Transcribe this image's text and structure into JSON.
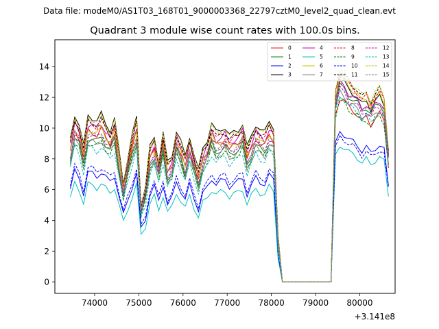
{
  "figure": {
    "suptitle": "Data file: modeM0/AS1T03_168T01_9000003368_22797cztM0_level2_quad_clean.evt",
    "title": "Quadrant 3 module wise count rates with 100.0s bins.",
    "offset_text": "+3.141e8"
  },
  "chart_data": {
    "type": "line",
    "x_offset": 314100000,
    "xlim": [
      73100,
      80800
    ],
    "ylim": [
      -0.75,
      15.75
    ],
    "xticks": [
      74000,
      75000,
      76000,
      77000,
      78000,
      79000,
      80000
    ],
    "xtick_labels": [
      "74000",
      "75000",
      "76000",
      "77000",
      "78000",
      "79000",
      "80000"
    ],
    "yticks": [
      0,
      2,
      4,
      6,
      8,
      10,
      12,
      14
    ],
    "ytick_labels": [
      "0",
      "2",
      "4",
      "6",
      "8",
      "10",
      "12",
      "14"
    ],
    "grid": false,
    "legend": {
      "placement": "top-right",
      "columns": 4
    },
    "series": [
      {
        "name": "0",
        "color": "#ff0000",
        "dash": "solid",
        "base": 9.0,
        "post": 10.9
      },
      {
        "name": "1",
        "color": "#008000",
        "dash": "solid",
        "base": 8.6,
        "post": 11.6
      },
      {
        "name": "2",
        "color": "#0000ff",
        "dash": "solid",
        "base": 6.5,
        "post": 8.9
      },
      {
        "name": "3",
        "color": "#000000",
        "dash": "solid",
        "base": 9.9,
        "post": 12.0
      },
      {
        "name": "4",
        "color": "#bf00bf",
        "dash": "solid",
        "base": 9.4,
        "post": 11.8
      },
      {
        "name": "5",
        "color": "#00bfbf",
        "dash": "solid",
        "base": 5.8,
        "post": 8.1
      },
      {
        "name": "6",
        "color": "#bfbf00",
        "dash": "solid",
        "base": 9.1,
        "post": 12.2
      },
      {
        "name": "7",
        "color": "#808080",
        "dash": "solid",
        "base": 8.4,
        "post": 11.2
      },
      {
        "name": "8",
        "color": "#ff0000",
        "dash": "dashed",
        "base": 9.5,
        "post": 12.3
      },
      {
        "name": "9",
        "color": "#008000",
        "dash": "dashed",
        "base": 8.3,
        "post": 10.8
      },
      {
        "name": "10",
        "color": "#0000ff",
        "dash": "dashed",
        "base": 6.8,
        "post": 8.6
      },
      {
        "name": "11",
        "color": "#000000",
        "dash": "dashed",
        "base": 9.6,
        "post": 12.5
      },
      {
        "name": "12",
        "color": "#bf00bf",
        "dash": "dashed",
        "base": 8.8,
        "post": 11.4
      },
      {
        "name": "13",
        "color": "#00bfbf",
        "dash": "dashed",
        "base": 8.0,
        "post": 11.0
      },
      {
        "name": "14",
        "color": "#bfbf00",
        "dash": "dashed",
        "base": 9.8,
        "post": 12.6
      },
      {
        "name": "15",
        "color": "#808080",
        "dash": "dashed",
        "base": 8.9,
        "post": 11.7
      }
    ],
    "x": [
      73450,
      73550,
      73650,
      73750,
      73850,
      73950,
      74050,
      74150,
      74250,
      74350,
      74450,
      74550,
      74650,
      74750,
      74850,
      74950,
      75050,
      75150,
      75250,
      75350,
      75450,
      75550,
      75650,
      75750,
      75850,
      75950,
      76050,
      76150,
      76250,
      76350,
      76450,
      76550,
      76650,
      76750,
      76850,
      76950,
      77050,
      77150,
      77250,
      77350,
      77450,
      77550,
      77650,
      77750,
      77850,
      77950,
      78050,
      78150,
      78250,
      78350,
      78450,
      78550,
      78650,
      78750,
      78850,
      78950,
      79050,
      79150,
      79250,
      79350,
      79450,
      79550,
      79650,
      79750,
      79850,
      79950,
      80050,
      80150,
      80250,
      80350,
      80450,
      80550,
      80650
    ],
    "shape": [
      0.93,
      1.1,
      1.04,
      0.89,
      1.09,
      1.08,
      1.06,
      1.1,
      1.04,
      1.0,
      1.07,
      0.86,
      0.66,
      0.82,
      0.96,
      1.08,
      0.52,
      0.63,
      0.88,
      0.95,
      0.8,
      0.98,
      0.78,
      0.83,
      1.0,
      0.92,
      0.82,
      0.96,
      0.84,
      0.73,
      0.88,
      0.94,
      1.04,
      0.98,
      1.0,
      1.02,
      0.96,
      0.98,
      1.0,
      1.04,
      0.88,
      0.96,
      1.04,
      1.0,
      0.98,
      1.06,
      1.02,
      0.3,
      0,
      0,
      0,
      0,
      0,
      0,
      0,
      0,
      0,
      0,
      0,
      0,
      1.0,
      1.1,
      1.08,
      1.04,
      1.02,
      1.0,
      0.96,
      0.98,
      0.94,
      0.98,
      1.0,
      0.96,
      0.7
    ]
  }
}
